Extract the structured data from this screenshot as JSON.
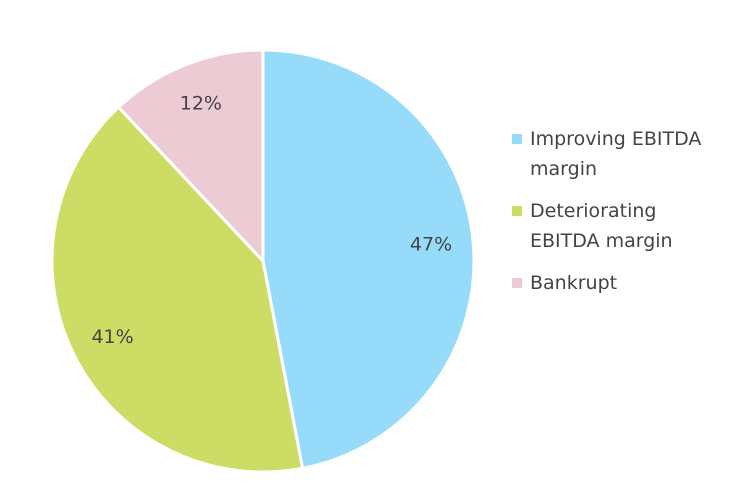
{
  "chart_data": {
    "type": "pie",
    "categories": [
      "Improving EBITDA margin",
      "Deteriorating EBITDA margin",
      "Bankrupt"
    ],
    "values": [
      47,
      41,
      12
    ],
    "value_labels": [
      "47%",
      "41%",
      "12%"
    ],
    "colors": [
      "#96dcfa",
      "#cddc64",
      "#eccbd5"
    ],
    "legend": "right"
  }
}
